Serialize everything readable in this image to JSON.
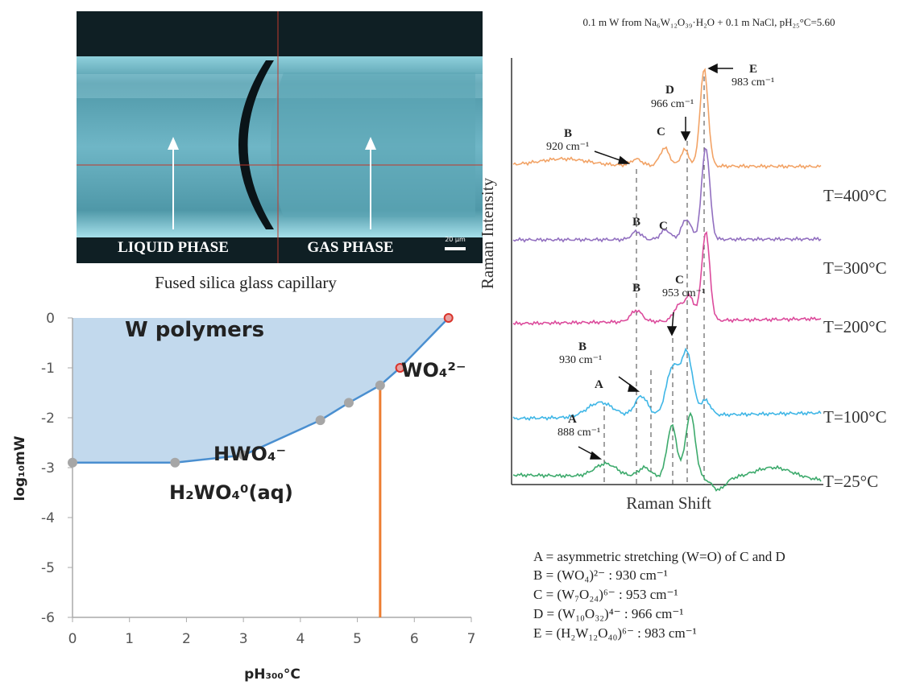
{
  "photo": {
    "labels": [
      "LIQUID PHASE",
      "GAS PHASE"
    ],
    "scale_bar": "20 µm",
    "caption": "Fused silica glass capillary"
  },
  "chart_data": {
    "type": "line",
    "x": [
      0,
      1.8,
      3,
      4.35,
      4.85,
      5.4,
      5.75,
      6.6
    ],
    "values": [
      -2.9,
      -2.9,
      -2.75,
      -2.05,
      -1.7,
      -1.35,
      -1.0,
      0
    ],
    "point_colors": [
      "#a6a6a6",
      "#a6a6a6",
      "#a6a6a6",
      "#a6a6a6",
      "#a6a6a6",
      "#a6a6a6",
      "#d9342b",
      "#d9342b"
    ],
    "color": "#4a8fd0",
    "fill": "#b7d2ea",
    "boundary_x": 5.4,
    "boundary_color": "#ed7d31",
    "xlim": [
      0,
      7
    ],
    "ylim": [
      -6,
      0
    ],
    "xticks": [
      0,
      1,
      2,
      3,
      4,
      5,
      6,
      7
    ],
    "yticks": [
      0,
      -1,
      -2,
      -3,
      -4,
      -5,
      -6
    ],
    "xlabel": "pH₃₀₀°C",
    "ylabel": "log₁₀mW",
    "region_labels": [
      "W polymers",
      "WO₄²⁻",
      "HWO₄⁻",
      "H₂WO₄⁰(aq)"
    ]
  },
  "raman": {
    "title": "0.1 m W from Na₆W₁₂O₃₉·H₂O + 0.1 m NaCl, pH₂₅°C=5.60",
    "ylabel": "Raman Intensity",
    "xlabel": "Raman Shift",
    "temperatures": [
      "T=400°C",
      "T=300°C",
      "T=200°C",
      "T=100°C",
      "T=25°C"
    ],
    "colors": [
      "#f2a366",
      "#9270c0",
      "#dc4b9c",
      "#3fb6e6",
      "#3daa6c"
    ],
    "peak_labels": [
      "B",
      "920 cm⁻¹",
      "C",
      "D",
      "966 cm⁻¹",
      "E",
      "983 cm⁻¹",
      "B",
      "C",
      "B",
      "C",
      "953 cm⁻¹",
      "B",
      "930 cm⁻¹",
      "A",
      "A",
      "888 cm⁻¹"
    ],
    "legend": [
      "A = asymmetric stretching (W=O) of C and D",
      "B = (WO₄)²⁻ : 930 cm⁻¹",
      "C = (W₇O₂₄)⁶⁻ : 953 cm⁻¹",
      "D = (W₁₀O₃₂)⁴⁻ : 966 cm⁻¹",
      "E = (H₂W₁₂O₄₀)⁶⁻ : 983 cm⁻¹"
    ]
  }
}
